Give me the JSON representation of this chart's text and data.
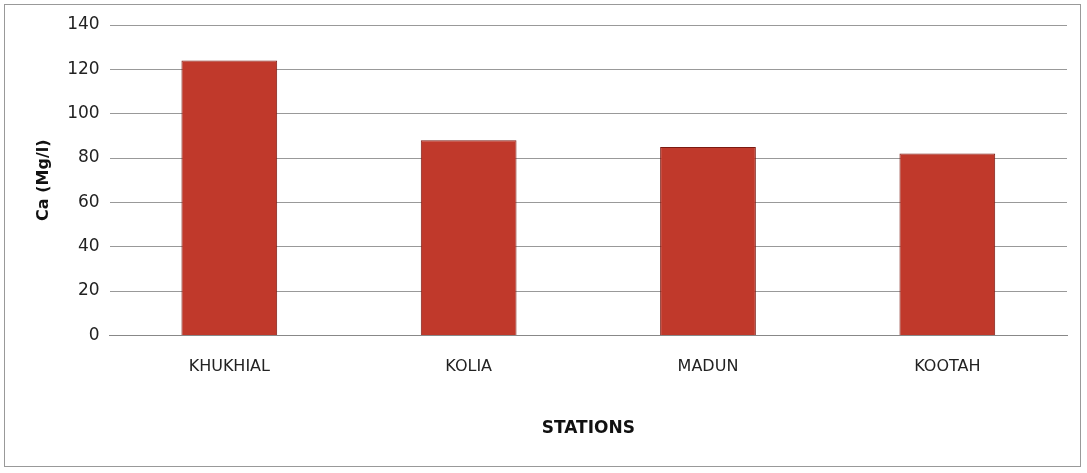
{
  "chart_data": {
    "type": "bar",
    "xlabel": "STATIONS",
    "ylabel": "Ca (Mg/l)",
    "categories": [
      "KHUKHIAL",
      "KOLIA",
      "MADUN",
      "KOOTAH"
    ],
    "values": [
      124,
      88,
      85,
      82
    ],
    "color": "#c0392b",
    "ylim": [
      0,
      140
    ],
    "yticks": [
      0,
      20,
      40,
      60,
      80,
      100,
      120,
      140
    ],
    "grid": "y",
    "legend": false
  }
}
